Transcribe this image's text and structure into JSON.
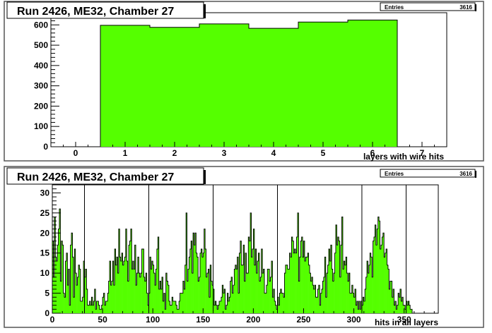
{
  "chart_data": [
    {
      "type": "histogram",
      "title": "Run 2426, ME32, Chamber 27",
      "xlabel": "layers with wire hits",
      "ylabel": "",
      "stats": {
        "label": "Entries",
        "value": "3616"
      },
      "xlim": [
        -0.5,
        7.5
      ],
      "ylim": [
        0,
        660
      ],
      "xticks": [
        0,
        1,
        2,
        3,
        4,
        5,
        6,
        7
      ],
      "yticks": [
        0,
        100,
        200,
        300,
        400,
        500,
        600
      ],
      "bins": [
        {
          "lo": 0.5,
          "hi": 1.5,
          "value": 598
        },
        {
          "lo": 1.5,
          "hi": 2.5,
          "value": 588
        },
        {
          "lo": 2.5,
          "hi": 3.5,
          "value": 605
        },
        {
          "lo": 3.5,
          "hi": 4.5,
          "value": 583
        },
        {
          "lo": 4.5,
          "hi": 5.5,
          "value": 614
        },
        {
          "lo": 5.5,
          "hi": 6.5,
          "value": 624
        }
      ],
      "fill_color": "#55ff00",
      "line_color": "#000000"
    },
    {
      "type": "histogram",
      "title": "Run 2426, ME32, Chamber 27",
      "xlabel": "hits in all layers",
      "ylabel": "",
      "stats": {
        "label": "Entries",
        "value": "3616"
      },
      "xlim": [
        0,
        384
      ],
      "ylim": [
        0,
        32
      ],
      "xticks": [
        0,
        50,
        100,
        150,
        200,
        250,
        300,
        350
      ],
      "yticks": [
        0,
        5,
        10,
        15,
        20,
        25,
        30
      ],
      "separators": [
        32,
        96,
        160,
        224,
        308,
        352
      ],
      "bin_start": 0,
      "bin_width": 1,
      "values": [
        18,
        9,
        24,
        14,
        13,
        17,
        21,
        26,
        8,
        18,
        17,
        5,
        4,
        13,
        15,
        7,
        11,
        2,
        17,
        20,
        14,
        4,
        16,
        10,
        7,
        9,
        12,
        11,
        3,
        3,
        4,
        13,
        9,
        11,
        6,
        2,
        2,
        3,
        2,
        4,
        2,
        3,
        6,
        1,
        3,
        3,
        2,
        1,
        1,
        2,
        4,
        5,
        2,
        3,
        3,
        5,
        8,
        13,
        7,
        8,
        13,
        7,
        16,
        12,
        14,
        10,
        21,
        14,
        13,
        15,
        12,
        13,
        14,
        21,
        13,
        8,
        17,
        18,
        21,
        11,
        13,
        11,
        17,
        7,
        10,
        14,
        10,
        9,
        10,
        16,
        16,
        9,
        8,
        10,
        5,
        2,
        5,
        14,
        11,
        13,
        12,
        10,
        7,
        11,
        16,
        19,
        6,
        8,
        6,
        9,
        3,
        5,
        1,
        10,
        8,
        7,
        3,
        2,
        2,
        4,
        3,
        3,
        3,
        2,
        1,
        1,
        3,
        5,
        5,
        5,
        8,
        6,
        12,
        25,
        8,
        11,
        14,
        16,
        18,
        10,
        20,
        17,
        20,
        15,
        14,
        8,
        9,
        15,
        16,
        14,
        15,
        21,
        16,
        9,
        10,
        11,
        4,
        12,
        8,
        7,
        6,
        2,
        3,
        2,
        1,
        2,
        3,
        3,
        4,
        7,
        5,
        6,
        1,
        2,
        5,
        3,
        4,
        8,
        9,
        5,
        7,
        11,
        12,
        11,
        14,
        5,
        15,
        18,
        12,
        12,
        17,
        8,
        15,
        10,
        10,
        19,
        18,
        25,
        14,
        16,
        21,
        12,
        16,
        10,
        13,
        15,
        8,
        9,
        16,
        10,
        11,
        5,
        5,
        7,
        11,
        11,
        8,
        9,
        13,
        4,
        6,
        3,
        2,
        1,
        4,
        2,
        5,
        6,
        5,
        5,
        4,
        10,
        12,
        12,
        11,
        11,
        15,
        14,
        19,
        18,
        15,
        16,
        15,
        19,
        25,
        8,
        14,
        18,
        19,
        14,
        18,
        13,
        14,
        14,
        15,
        12,
        10,
        8,
        9,
        7,
        6,
        7,
        4,
        4,
        6,
        7,
        2,
        5,
        6,
        8,
        9,
        14,
        4,
        10,
        12,
        16,
        13,
        17,
        11,
        8,
        10,
        15,
        22,
        17,
        19,
        18,
        9,
        17,
        24,
        11,
        13,
        12,
        14,
        10,
        8,
        10,
        5,
        5,
        7,
        5,
        4,
        6,
        2,
        3,
        1,
        3,
        1,
        3,
        2,
        4,
        3,
        6,
        9,
        13,
        10,
        12,
        15,
        14,
        9,
        18,
        19,
        22,
        17,
        21,
        24,
        23,
        16,
        17,
        19,
        20,
        14,
        15,
        16,
        12,
        11,
        6,
        8,
        8,
        4,
        6,
        2,
        3,
        1,
        2,
        5,
        4,
        6,
        3,
        4,
        2,
        2,
        1,
        3,
        2,
        3,
        2,
        1,
        1
      ],
      "fill_color": "#55ff00",
      "line_color": "#000000"
    }
  ]
}
